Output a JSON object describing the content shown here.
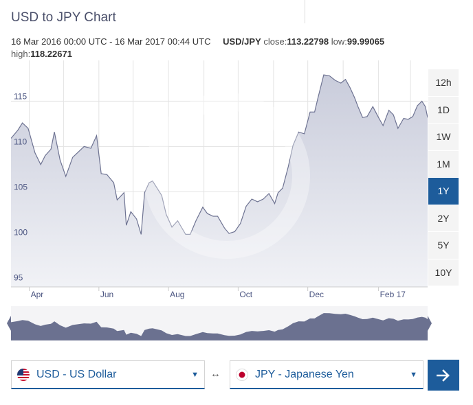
{
  "header": {
    "title": "USD to JPY Chart",
    "range_text": "16 Mar 2016 00:00 UTC - 16 Mar 2017 00:44 UTC",
    "pair": "USD/JPY",
    "close_label": "close:",
    "close_value": "113.22798",
    "low_label": "low:",
    "low_value": "99.99065",
    "high_label": "high:",
    "high_value": "118.22671"
  },
  "time_ranges": [
    {
      "label": "12h",
      "active": false
    },
    {
      "label": "1D",
      "active": false
    },
    {
      "label": "1W",
      "active": false
    },
    {
      "label": "1M",
      "active": false
    },
    {
      "label": "1Y",
      "active": true
    },
    {
      "label": "2Y",
      "active": false
    },
    {
      "label": "5Y",
      "active": false
    },
    {
      "label": "10Y",
      "active": false
    }
  ],
  "converter": {
    "from": {
      "label": "USD - US Dollar",
      "icon": "us-flag-icon"
    },
    "swap_symbol": "↔",
    "to": {
      "label": "JPY - Japanese Yen",
      "icon": "japan-flag-icon"
    },
    "go_icon": "arrow-right-icon"
  },
  "colors": {
    "accent": "#1d5c9b",
    "area": "#dde0ea",
    "line": "#6e7392",
    "navigator": "#6b7190"
  },
  "chart_data": {
    "type": "area",
    "title": "USD to JPY Chart",
    "series": [
      {
        "name": "USD/JPY",
        "x": [
          "2016-03-16",
          "2016-03-22",
          "2016-03-26",
          "2016-03-31",
          "2016-04-06",
          "2016-04-11",
          "2016-04-15",
          "2016-04-20",
          "2016-04-23",
          "2016-04-28",
          "2016-05-03",
          "2016-05-09",
          "2016-05-14",
          "2016-05-19",
          "2016-05-25",
          "2016-05-30",
          "2016-06-03",
          "2016-06-08",
          "2016-06-14",
          "2016-06-17",
          "2016-06-23",
          "2016-06-25",
          "2016-06-29",
          "2016-07-04",
          "2016-07-08",
          "2016-07-11",
          "2016-07-15",
          "2016-07-18",
          "2016-07-22",
          "2016-07-26",
          "2016-07-30",
          "2016-08-04",
          "2016-08-09",
          "2016-08-16",
          "2016-08-20",
          "2016-08-25",
          "2016-08-31",
          "2016-09-04",
          "2016-09-09",
          "2016-09-13",
          "2016-09-19",
          "2016-09-23",
          "2016-09-28",
          "2016-10-03",
          "2016-10-08",
          "2016-10-13",
          "2016-10-18",
          "2016-10-23",
          "2016-10-28",
          "2016-11-02",
          "2016-11-05",
          "2016-11-09",
          "2016-11-14",
          "2016-11-18",
          "2016-11-23",
          "2016-11-28",
          "2016-12-03",
          "2016-12-07",
          "2016-12-10",
          "2016-12-15",
          "2016-12-20",
          "2016-12-25",
          "2016-12-30",
          "2017-01-03",
          "2017-01-07",
          "2017-01-11",
          "2017-01-14",
          "2017-01-18",
          "2017-01-22",
          "2017-01-27",
          "2017-02-01",
          "2017-02-05",
          "2017-02-10",
          "2017-02-14",
          "2017-02-18",
          "2017-02-23",
          "2017-02-27",
          "2017-03-03",
          "2017-03-07",
          "2017-03-11",
          "2017-03-14",
          "2017-03-16"
        ],
        "y": [
          110.9,
          111.8,
          112.6,
          112.0,
          109.3,
          108.0,
          109.0,
          109.7,
          111.6,
          108.5,
          106.7,
          108.8,
          109.4,
          110.0,
          109.8,
          111.2,
          107.0,
          106.9,
          106.0,
          104.1,
          104.9,
          101.3,
          102.8,
          102.0,
          100.3,
          104.9,
          106.0,
          106.2,
          105.4,
          104.6,
          102.5,
          101.1,
          101.8,
          100.3,
          100.3,
          101.8,
          103.3,
          102.6,
          102.3,
          102.3,
          101.0,
          100.4,
          100.6,
          101.5,
          103.4,
          104.2,
          103.9,
          104.2,
          104.8,
          103.7,
          104.9,
          105.4,
          107.8,
          110.1,
          111.6,
          111.4,
          113.8,
          113.8,
          115.4,
          117.9,
          117.8,
          117.3,
          117.0,
          117.4,
          116.5,
          115.4,
          114.4,
          113.2,
          113.3,
          114.4,
          113.2,
          112.3,
          114.0,
          113.5,
          112.0,
          113.1,
          113.0,
          113.3,
          114.5,
          115.0,
          114.4,
          113.2
        ]
      }
    ],
    "x_ticks": [
      "Apr",
      "Jun",
      "Aug",
      "Oct",
      "Dec",
      "Feb 17"
    ],
    "y_ticks": [
      95,
      100,
      105,
      110,
      115
    ],
    "ylim": [
      94.5,
      119.5
    ],
    "xlim": [
      "2016-03-16",
      "2017-03-16"
    ],
    "grid": true,
    "navigator": true
  }
}
